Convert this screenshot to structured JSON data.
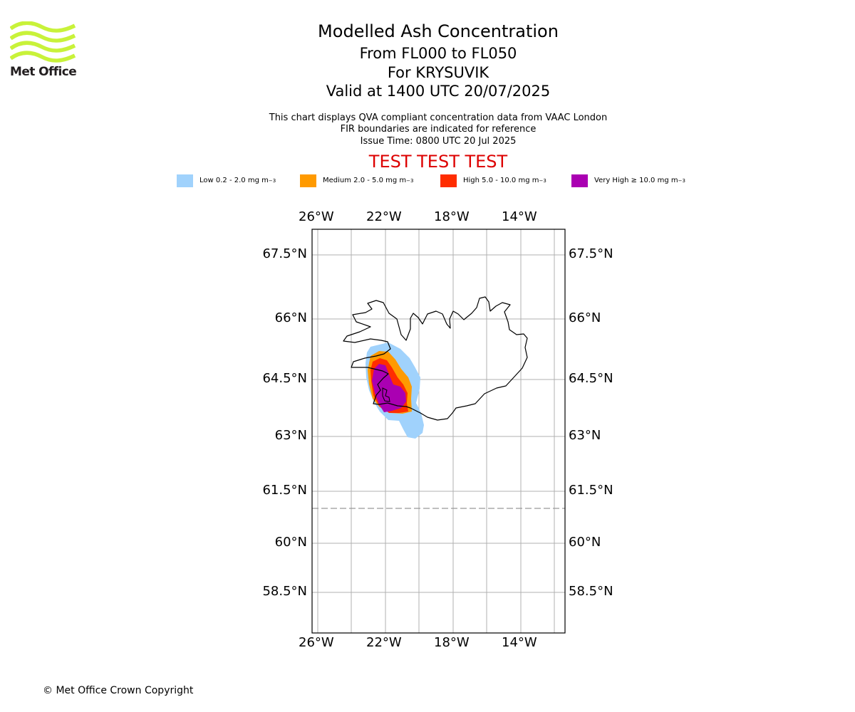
{
  "logo": {
    "text": "Met Office",
    "wave_color": "#c8f23a",
    "icon": "met-office-logo-icon"
  },
  "titles": {
    "main": "Modelled Ash Concentration",
    "levels": "From FL000 to FL050",
    "volcano": "For KRYSUVIK",
    "valid": "Valid at 1400 UTC 20/07/2025"
  },
  "info": {
    "line1": "This chart displays QVA compliant concentration data from VAAC London",
    "line2": "FIR boundaries are indicated for reference",
    "line3": "Issue Time: 0800 UTC 20 Jul 2025"
  },
  "test_banner": {
    "text": "TEST TEST TEST",
    "color": "#dd0000"
  },
  "legend": [
    {
      "label": "Low 0.2 - 2.0 mg m",
      "exp": "−3",
      "color": "#a0d2fc"
    },
    {
      "label": "Medium 2.0 - 5.0 mg m",
      "exp": "−3",
      "color": "#ff9a00"
    },
    {
      "label": "High 5.0 - 10.0 mg m",
      "exp": "−3",
      "color": "#ff2d00"
    },
    {
      "label": "Very High ≥ 10.0 mg m",
      "exp": "−3",
      "color": "#aa00b2"
    }
  ],
  "map": {
    "lon_ticks": [
      "26°W",
      "22°W",
      "18°W",
      "14°W"
    ],
    "lat_ticks": [
      "67.5°N",
      "66°N",
      "64.5°N",
      "63°N",
      "61.5°N",
      "60°N",
      "58.5°N"
    ],
    "fir_boundary": "dashed grey line",
    "coastline": "Iceland"
  },
  "copyright": "© Met Office Crown Copyright"
}
